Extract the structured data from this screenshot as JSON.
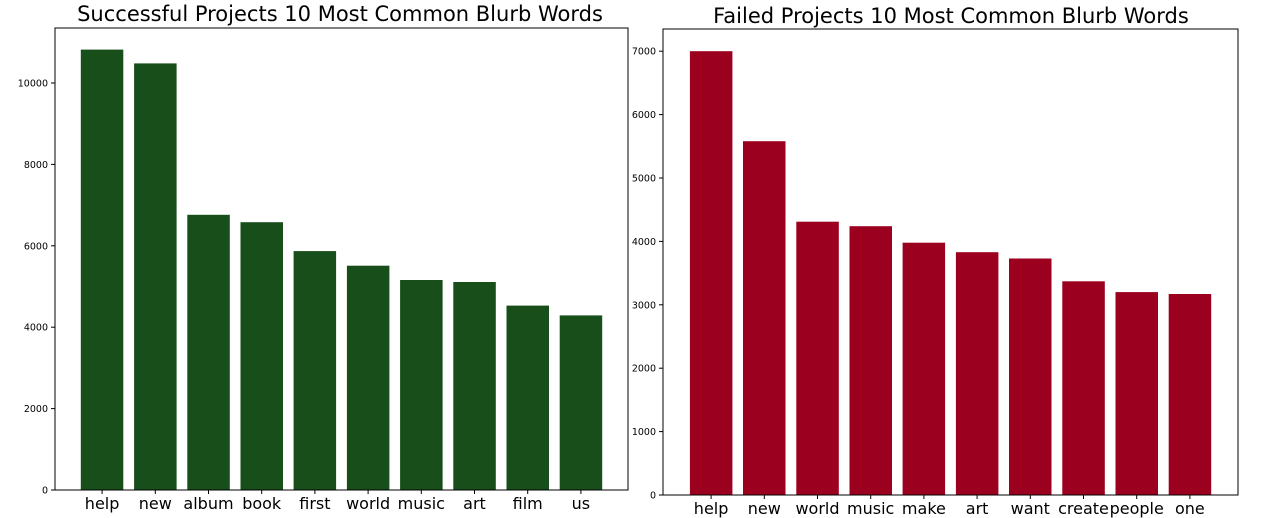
{
  "chart_data": [
    {
      "type": "bar",
      "title": "Successful Projects 10 Most Common Blurb Words",
      "xlabel": "",
      "ylabel": "",
      "categories": [
        "help",
        "new",
        "album",
        "book",
        "first",
        "world",
        "music",
        "art",
        "film",
        "us"
      ],
      "values": [
        10820,
        10480,
        6760,
        6580,
        5870,
        5510,
        5160,
        5110,
        4530,
        4290
      ],
      "ylim": [
        0,
        11350
      ],
      "yticks": [
        0,
        2000,
        4000,
        6000,
        8000,
        10000
      ],
      "color": "#184e1a",
      "grid": false
    },
    {
      "type": "bar",
      "title": "Failed Projects 10 Most Common Blurb Words",
      "xlabel": "",
      "ylabel": "",
      "categories": [
        "help",
        "new",
        "world",
        "music",
        "make",
        "art",
        "want",
        "create",
        "people",
        "one"
      ],
      "values": [
        7000,
        5580,
        4310,
        4240,
        3980,
        3830,
        3730,
        3370,
        3200,
        3170
      ],
      "ylim": [
        0,
        7350
      ],
      "yticks": [
        0,
        1000,
        2000,
        3000,
        4000,
        5000,
        6000,
        7000
      ],
      "color": "#9b001e",
      "grid": false
    }
  ]
}
